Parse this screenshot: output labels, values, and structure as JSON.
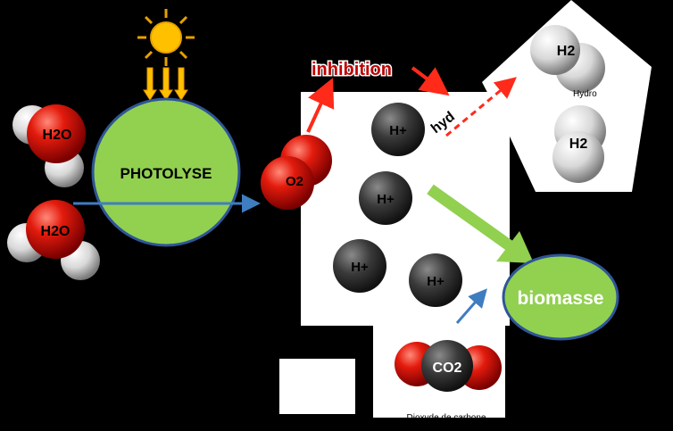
{
  "labels": {
    "photolyse": "PHOTOLYSE",
    "h2o_top": "H2O",
    "h2o_bottom": "H2O",
    "o2": "O2",
    "inhibition": "inhibition",
    "hplus_1": "H+",
    "hplus_2": "H+",
    "hplus_3": "H+",
    "hplus_4": "H+",
    "hydro_partial": "hyd",
    "h2_top": "H2",
    "h2_bottom": "H2",
    "hydrogene_partial": "Hydro",
    "biomasse": "biomasse",
    "co2": "CO2",
    "co2_caption": "Dioxyde de carbone"
  },
  "colors": {
    "background": "#000000",
    "photolyse_fill": "#92d050",
    "photolyse_stroke": "#2e5597",
    "sun": "#ffc000",
    "red_arrow": "#ff2a1a",
    "blue_arrow": "#3f7dc1",
    "green_arrow": "#92d050",
    "inhibition_text": "#c00000",
    "oxygen_red": "#e31b0d",
    "carbon_gray": "#333333"
  }
}
